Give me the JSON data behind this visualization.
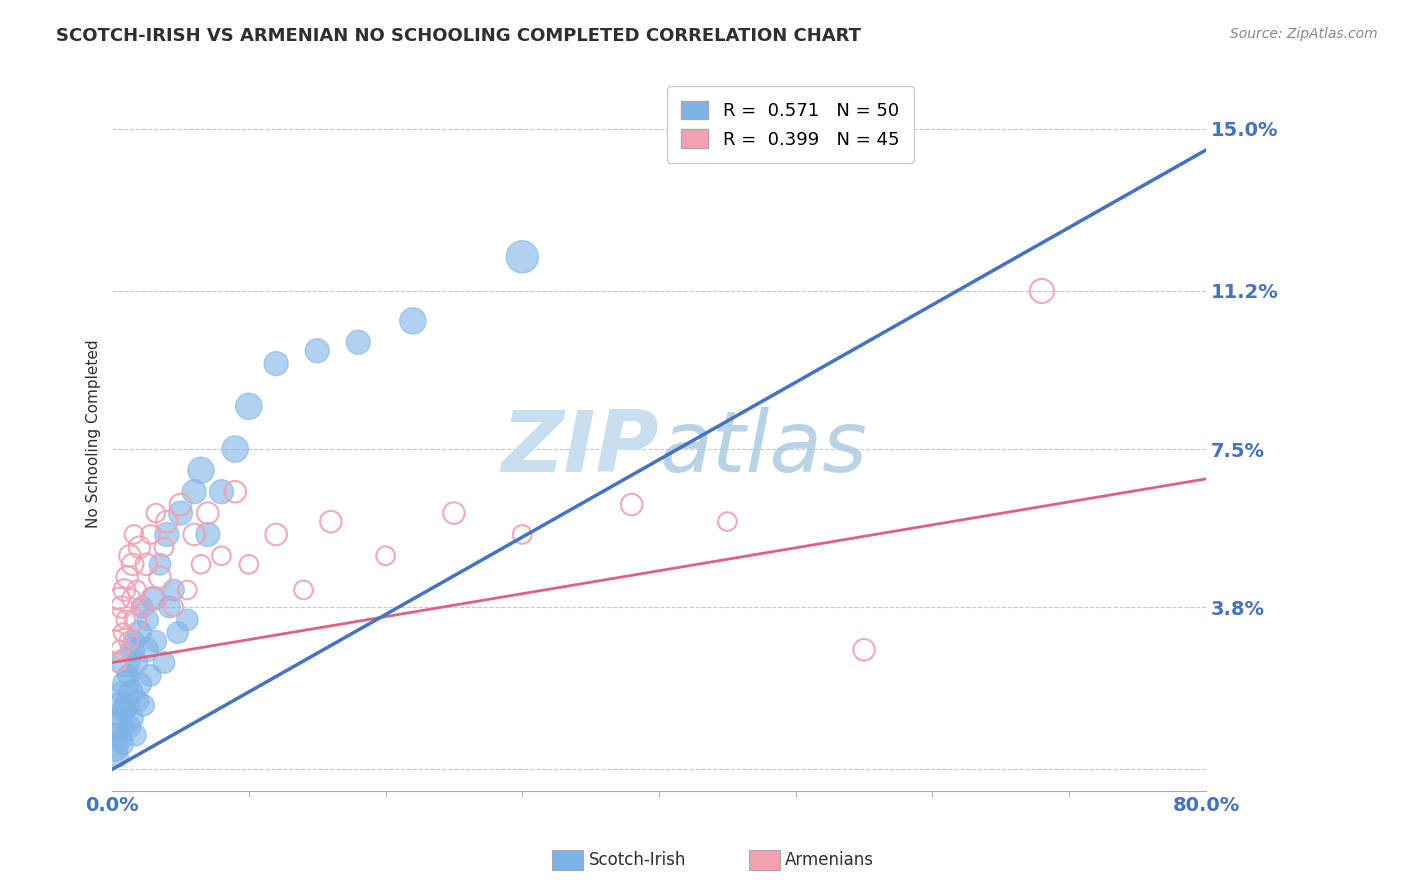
{
  "title": "SCOTCH-IRISH VS ARMENIAN NO SCHOOLING COMPLETED CORRELATION CHART",
  "source_text": "Source: ZipAtlas.com",
  "ylabel": "No Schooling Completed",
  "xmin": 0.0,
  "xmax": 0.8,
  "ymin": -0.005,
  "ymax": 0.162,
  "yticks": [
    0.0,
    0.038,
    0.075,
    0.112,
    0.15
  ],
  "ytick_labels": [
    "",
    "3.8%",
    "7.5%",
    "11.2%",
    "15.0%"
  ],
  "xticks": [
    0.0,
    0.8
  ],
  "xtick_labels": [
    "0.0%",
    "80.0%"
  ],
  "legend_r1": "R =  0.571",
  "legend_n1": "N = 50",
  "legend_r2": "R =  0.399",
  "legend_n2": "N = 45",
  "label1": "Scotch-Irish",
  "label2": "Armenians",
  "color1": "#7eb3e8",
  "color2": "#f4a0b0",
  "trendline1_color": "#4472c4",
  "trendline2_color": "#e06080",
  "background_color": "#ffffff",
  "grid_color": "#c8c8c8",
  "title_color": "#2f2f2f",
  "axis_label_color": "#4472c4",
  "watermark_color": "#c8dff0",
  "scotch_irish_x": [
    0.002,
    0.003,
    0.004,
    0.005,
    0.005,
    0.006,
    0.007,
    0.007,
    0.008,
    0.009,
    0.01,
    0.01,
    0.011,
    0.012,
    0.013,
    0.014,
    0.015,
    0.015,
    0.016,
    0.017,
    0.018,
    0.019,
    0.02,
    0.021,
    0.022,
    0.023,
    0.025,
    0.026,
    0.028,
    0.03,
    0.032,
    0.035,
    0.038,
    0.04,
    0.042,
    0.045,
    0.048,
    0.05,
    0.055,
    0.06,
    0.065,
    0.07,
    0.08,
    0.09,
    0.1,
    0.12,
    0.15,
    0.18,
    0.22,
    0.3
  ],
  "scotch_irish_y": [
    0.005,
    0.008,
    0.003,
    0.01,
    0.015,
    0.007,
    0.012,
    0.018,
    0.006,
    0.014,
    0.02,
    0.025,
    0.015,
    0.022,
    0.01,
    0.018,
    0.028,
    0.012,
    0.03,
    0.008,
    0.025,
    0.016,
    0.032,
    0.02,
    0.038,
    0.015,
    0.028,
    0.035,
    0.022,
    0.04,
    0.03,
    0.048,
    0.025,
    0.055,
    0.038,
    0.042,
    0.032,
    0.06,
    0.035,
    0.065,
    0.07,
    0.055,
    0.065,
    0.075,
    0.085,
    0.095,
    0.098,
    0.1,
    0.105,
    0.12
  ],
  "scotch_irish_sizes": [
    30,
    25,
    20,
    35,
    25,
    20,
    25,
    20,
    20,
    25,
    30,
    35,
    25,
    20,
    20,
    25,
    25,
    20,
    20,
    20,
    20,
    20,
    25,
    20,
    20,
    20,
    25,
    20,
    20,
    25,
    20,
    20,
    20,
    25,
    20,
    20,
    20,
    25,
    20,
    25,
    30,
    25,
    25,
    30,
    30,
    25,
    25,
    25,
    30,
    45
  ],
  "armenian_x": [
    0.002,
    0.003,
    0.004,
    0.005,
    0.006,
    0.007,
    0.008,
    0.009,
    0.01,
    0.011,
    0.012,
    0.013,
    0.014,
    0.015,
    0.016,
    0.017,
    0.018,
    0.02,
    0.022,
    0.025,
    0.028,
    0.03,
    0.032,
    0.035,
    0.038,
    0.04,
    0.045,
    0.05,
    0.055,
    0.06,
    0.065,
    0.07,
    0.08,
    0.09,
    0.1,
    0.12,
    0.14,
    0.16,
    0.2,
    0.25,
    0.3,
    0.38,
    0.45,
    0.55,
    0.68
  ],
  "armenian_y": [
    0.03,
    0.035,
    0.025,
    0.04,
    0.028,
    0.038,
    0.032,
    0.042,
    0.035,
    0.045,
    0.03,
    0.05,
    0.04,
    0.048,
    0.055,
    0.035,
    0.042,
    0.052,
    0.038,
    0.048,
    0.055,
    0.04,
    0.06,
    0.045,
    0.052,
    0.058,
    0.038,
    0.062,
    0.042,
    0.055,
    0.048,
    0.06,
    0.05,
    0.065,
    0.048,
    0.055,
    0.042,
    0.058,
    0.05,
    0.06,
    0.055,
    0.062,
    0.058,
    0.028,
    0.112
  ],
  "armenian_sizes": [
    20,
    20,
    15,
    20,
    15,
    20,
    15,
    20,
    15,
    20,
    15,
    20,
    15,
    20,
    15,
    20,
    15,
    20,
    15,
    20,
    15,
    20,
    15,
    20,
    15,
    20,
    15,
    20,
    15,
    20,
    15,
    20,
    15,
    20,
    15,
    20,
    15,
    20,
    15,
    20,
    15,
    20,
    15,
    20,
    25
  ],
  "trendline1_x": [
    0.0,
    0.8
  ],
  "trendline1_y": [
    0.0,
    0.145
  ],
  "trendline2_x": [
    0.0,
    0.8
  ],
  "trendline2_y": [
    0.025,
    0.068
  ]
}
